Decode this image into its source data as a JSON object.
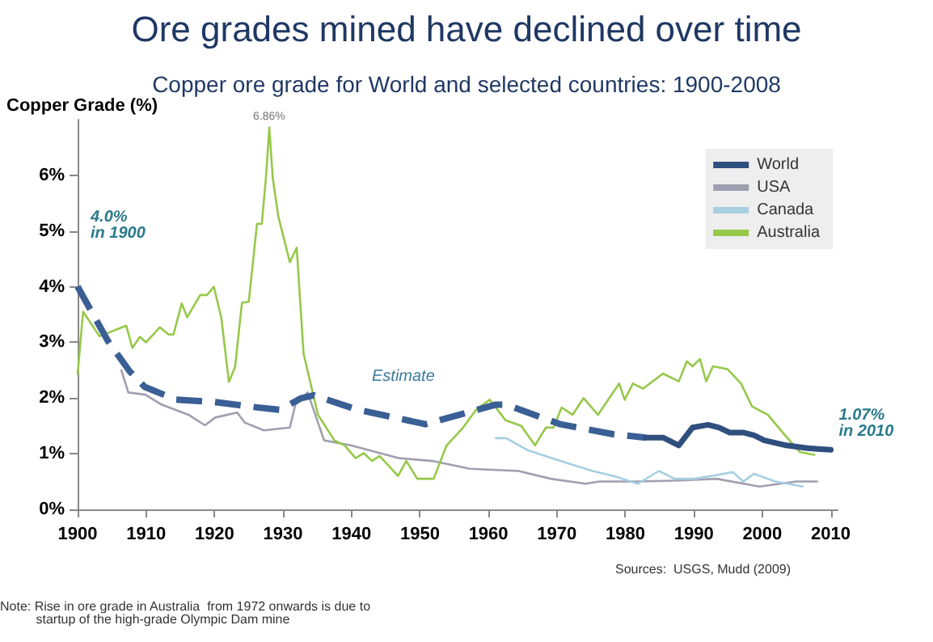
{
  "chart_data": {
    "type": "line",
    "title": "Ore grades mined have declined over time",
    "subtitle": "Copper ore grade for World and selected countries: 1900-2008",
    "ylabel": "Copper Grade (%)",
    "xlim": [
      1900,
      2011
    ],
    "xticks": [
      1900,
      1910,
      1920,
      1930,
      1940,
      1950,
      1960,
      1970,
      1980,
      1990,
      2000,
      2010
    ],
    "ylim": [
      0,
      7
    ],
    "yticks": [
      {
        "value": 0,
        "label": "0%"
      },
      {
        "value": 1,
        "label": "1%"
      },
      {
        "value": 2,
        "label": "2%"
      },
      {
        "value": 3,
        "label": "3%"
      },
      {
        "value": 4,
        "label": "4%"
      },
      {
        "value": 5,
        "label": "5%"
      },
      {
        "value": 6,
        "label": "6%"
      }
    ],
    "grid": false,
    "legend": "top right",
    "marker": "none",
    "series": [
      {
        "color": "#3a5f95",
        "line_style": "dashed",
        "x": [
          1900,
          1904.4,
          1907.6,
          1909.8,
          1914.4,
          1920,
          1925.6,
          1929.5,
          1932.7,
          1934.5,
          1940.6,
          1950.8,
          1961,
          1962.6,
          1970.5,
          1978.2,
          1983
        ],
        "values": [
          4.0,
          3.03,
          2.48,
          2.2,
          1.97,
          1.93,
          1.84,
          1.79,
          2.0,
          2.05,
          1.8,
          1.53,
          1.88,
          1.88,
          1.53,
          1.35,
          1.29
        ]
      },
      {
        "name": "World",
        "color": "#2f4f7f",
        "line_style": "solid",
        "x": [
          1983,
          1985.5,
          1987.8,
          1989.8,
          1992.1,
          1993.7,
          1995.2,
          1997.2,
          1998.8,
          2000.3,
          2003.5,
          2006.6,
          2010
        ],
        "values": [
          1.29,
          1.29,
          1.15,
          1.47,
          1.52,
          1.47,
          1.38,
          1.38,
          1.33,
          1.24,
          1.15,
          1.1,
          1.07
        ]
      },
      {
        "name": "USA",
        "color": "#a09fb0",
        "line_style": "solid",
        "x": [
          1906.4,
          1907.4,
          1909.9,
          1912.3,
          1916.2,
          1918.6,
          1920.1,
          1923.3,
          1924.4,
          1927.2,
          1931,
          1931.8,
          1933.6,
          1936,
          1939.9,
          1947,
          1951.8,
          1957.3,
          1964.4,
          1969.1,
          1974.2,
          1976.2,
          1981.8,
          1988,
          1993.3,
          1999.6,
          2005,
          2008
        ],
        "values": [
          2.5,
          2.1,
          2.06,
          1.88,
          1.7,
          1.51,
          1.65,
          1.74,
          1.56,
          1.42,
          1.47,
          1.88,
          2.1,
          1.24,
          1.15,
          0.92,
          0.87,
          0.73,
          0.69,
          0.55,
          0.46,
          0.5,
          0.5,
          0.52,
          0.55,
          0.41,
          0.5,
          0.5
        ]
      },
      {
        "name": "Canada",
        "color": "#a6cfe0",
        "line_style": "solid",
        "x": [
          1961.1,
          1962.6,
          1965.8,
          1970.5,
          1975.2,
          1978.3,
          1981.8,
          1984.9,
          1987.2,
          1990,
          1992.5,
          1995.7,
          1997.2,
          1998.8,
          2001.9,
          2005.9
        ],
        "values": [
          1.28,
          1.28,
          1.06,
          0.87,
          0.69,
          0.6,
          0.46,
          0.69,
          0.55,
          0.55,
          0.6,
          0.67,
          0.5,
          0.64,
          0.5,
          0.41
        ]
      },
      {
        "name": "Australia",
        "color": "#96c84a",
        "line_style": "solid",
        "x": [
          1900,
          1900.8,
          1903.2,
          1907.1,
          1908,
          1909.1,
          1910,
          1912,
          1913.3,
          1914,
          1915.2,
          1916,
          1917.9,
          1918.9,
          1919.9,
          1921,
          1922.1,
          1923,
          1924,
          1925,
          1926.2,
          1926.9,
          1927.5,
          1928,
          1928.5,
          1929.3,
          1931,
          1932,
          1933,
          1935.1,
          1937.5,
          1939,
          1940.6,
          1941.8,
          1943,
          1944.1,
          1946.8,
          1948,
          1949.6,
          1952,
          1953.9,
          1956.3,
          1958.2,
          1960.2,
          1962.5,
          1964.8,
          1966.8,
          1968.4,
          1969.5,
          1970.7,
          1972.3,
          1973.9,
          1976,
          1979.1,
          1979.9,
          1981.1,
          1982.6,
          1985.5,
          1987.8,
          1989,
          1989.8,
          1990.9,
          1991.8,
          1992.8,
          1994.9,
          1996.9,
          1998.5,
          2000.8,
          2003.2,
          2005.5,
          2007.6
        ],
        "values": [
          2.43,
          3.55,
          3.11,
          3.3,
          2.9,
          3.1,
          3.0,
          3.27,
          3.14,
          3.14,
          3.7,
          3.45,
          3.85,
          3.85,
          4.0,
          3.43,
          2.29,
          2.56,
          3.71,
          3.73,
          5.13,
          5.13,
          5.95,
          6.86,
          5.95,
          5.27,
          4.44,
          4.7,
          2.8,
          1.7,
          1.24,
          1.15,
          0.92,
          1.01,
          0.87,
          0.96,
          0.6,
          0.87,
          0.55,
          0.55,
          1.15,
          1.47,
          1.79,
          1.97,
          1.6,
          1.5,
          1.15,
          1.47,
          1.47,
          1.83,
          1.7,
          2.0,
          1.7,
          2.26,
          1.97,
          2.26,
          2.17,
          2.44,
          2.3,
          2.66,
          2.57,
          2.7,
          2.3,
          2.57,
          2.52,
          2.26,
          1.85,
          1.7,
          1.35,
          1.03,
          0.98
        ]
      }
    ],
    "annotations": [
      {
        "text": "4.0%\nin 1900",
        "x": 1900,
        "y": 4.0
      },
      {
        "text": "1.07%\nin 2010",
        "x": 2010,
        "y": 1.07
      },
      {
        "text": "6.86%",
        "x": 1928,
        "y": 6.86
      },
      "Estimate",
      "Sources:  USGS, Mudd (2009)",
      "Note: Rise in ore grade in Australia  from 1972 onwards is due to\n          startup of the high-grade Olympic Dam mine"
    ]
  }
}
